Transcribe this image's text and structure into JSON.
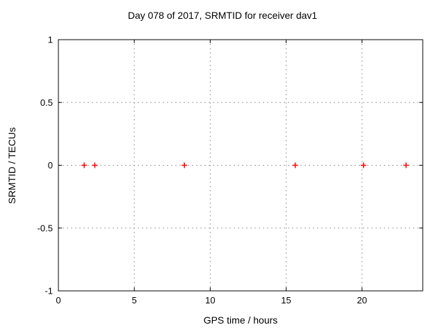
{
  "page": {
    "background_color": "#ffffff",
    "text_color": "#000000"
  },
  "chart_data": {
    "type": "scatter",
    "title": "Day 078 of 2017, SRMTID for receiver dav1",
    "xlabel": "GPS time / hours",
    "ylabel": "SRMTID / TECUs",
    "xlim": [
      0,
      24
    ],
    "ylim": [
      -1,
      1
    ],
    "xticks": {
      "values": [
        0,
        5,
        10,
        15,
        20
      ],
      "labels": [
        "0",
        "5",
        "10",
        "15",
        "20"
      ]
    },
    "yticks": {
      "values": [
        -1,
        -0.5,
        0,
        0.5,
        1
      ],
      "labels": [
        "-1",
        "-0.5",
        "0",
        "0.5",
        "1"
      ]
    },
    "grid": true,
    "grid_style": "dashed",
    "legend": false,
    "series": [
      {
        "name": "SRMTID",
        "marker": "plus",
        "color": "#ff0000",
        "points": [
          {
            "x": 1.7,
            "y": 0
          },
          {
            "x": 2.4,
            "y": 0
          },
          {
            "x": 8.3,
            "y": 0
          },
          {
            "x": 15.6,
            "y": 0
          },
          {
            "x": 20.1,
            "y": 0
          },
          {
            "x": 22.9,
            "y": 0
          }
        ]
      }
    ],
    "colors": {
      "grid": "#9e9e9e",
      "axis": "#000000",
      "tick_text": "#000000",
      "marker": "#ff0000"
    }
  }
}
